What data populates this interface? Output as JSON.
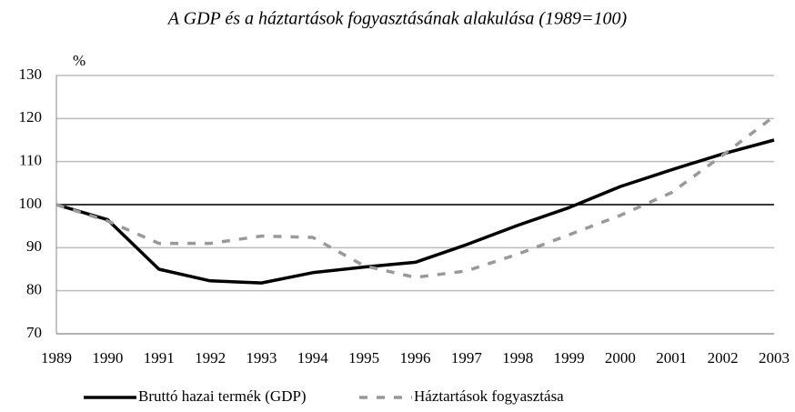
{
  "chart_data": {
    "type": "line",
    "title": "A GDP és a háztartások fogyasztásának alakulása (1989=100)",
    "y_unit": "%",
    "categories": [
      "1989",
      "1990",
      "1991",
      "1992",
      "1993",
      "1994",
      "1995",
      "1996",
      "1997",
      "1998",
      "1999",
      "2000",
      "2001",
      "2002",
      "2003"
    ],
    "series": [
      {
        "name": "Bruttó hazai termék (GDP)",
        "color": "#000000",
        "dashed": false,
        "values": [
          100,
          96.5,
          85,
          82.3,
          81.8,
          84.2,
          85.5,
          86.6,
          90.7,
          95.2,
          99.3,
          104.2,
          108.1,
          111.8,
          115
        ]
      },
      {
        "name": "Háztartások fogyasztása",
        "color": "#999999",
        "dashed": true,
        "values": [
          100,
          96.2,
          91,
          91,
          92.7,
          92.4,
          85.8,
          83.1,
          84.6,
          88.5,
          93,
          97.5,
          102.8,
          111.5,
          120.5
        ]
      }
    ],
    "ylim": [
      70,
      130
    ],
    "yticks": [
      70,
      80,
      90,
      100,
      110,
      120,
      130
    ],
    "grid": true,
    "baseline": 100,
    "legend": "bottom"
  }
}
